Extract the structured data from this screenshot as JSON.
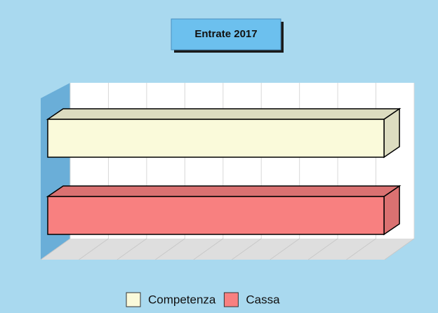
{
  "chart_data": {
    "type": "bar3d",
    "orientation": "horizontal",
    "title": "Entrate 2017",
    "series": [
      {
        "name": "Competenza",
        "color": "#fafada",
        "values": [
          8.8
        ]
      },
      {
        "name": "Cassa",
        "color": "#f88080",
        "values": [
          8.8
        ]
      }
    ],
    "xlim": [
      0,
      9
    ],
    "xticks": [
      0,
      1,
      2,
      3,
      4,
      5,
      6,
      7,
      8,
      9
    ],
    "grid": true,
    "legend": "bottom"
  }
}
